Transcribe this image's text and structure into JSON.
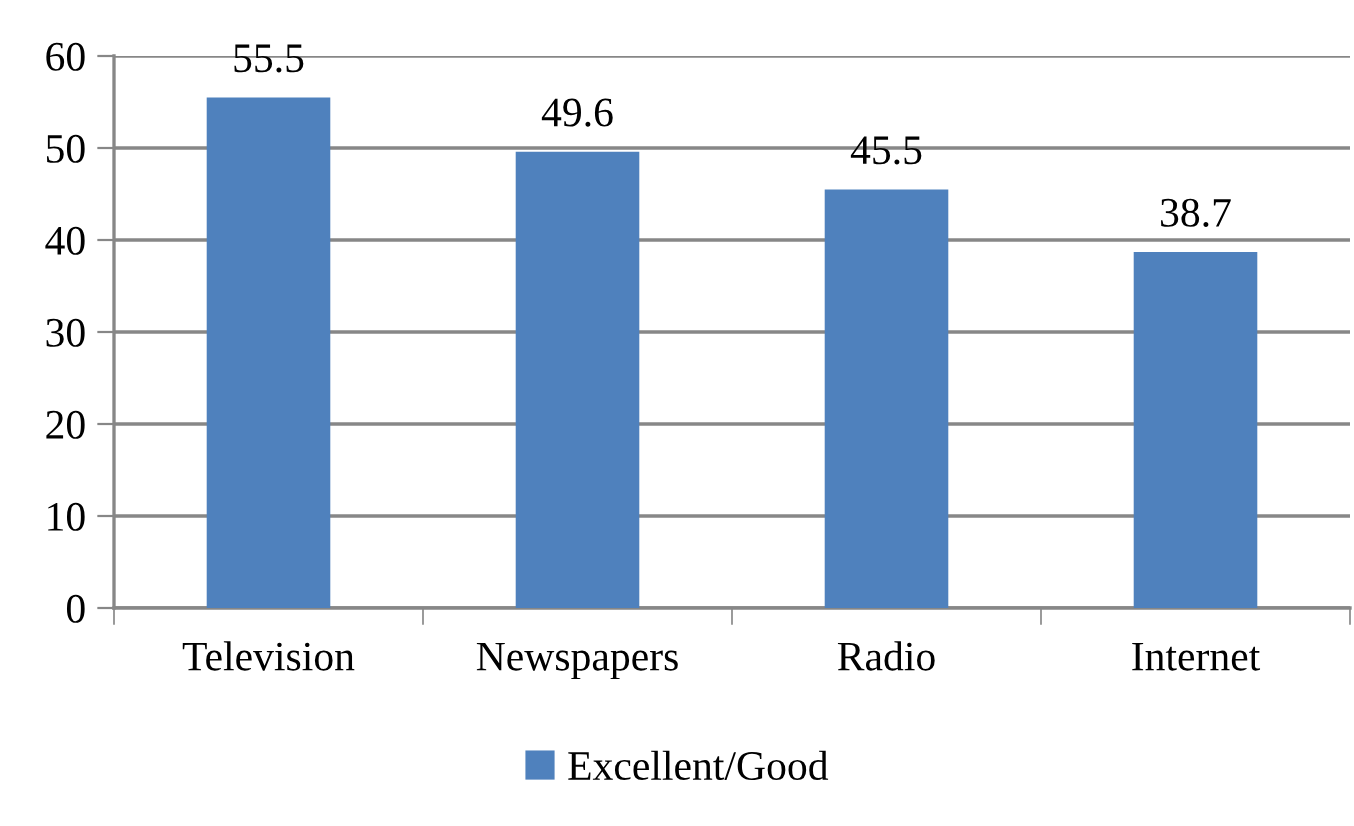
{
  "chart_data": {
    "type": "bar",
    "categories": [
      "Television",
      "Newspapers",
      "Radio",
      "Internet"
    ],
    "series": [
      {
        "name": "Excellent/Good",
        "color": "#4f81bd",
        "values": [
          55.5,
          49.6,
          45.5,
          38.7
        ]
      }
    ],
    "ylim": [
      0,
      60
    ],
    "yticks": [
      0,
      10,
      20,
      30,
      40,
      50,
      60
    ],
    "grid": "y",
    "legend": "bottom",
    "data_labels": true
  }
}
